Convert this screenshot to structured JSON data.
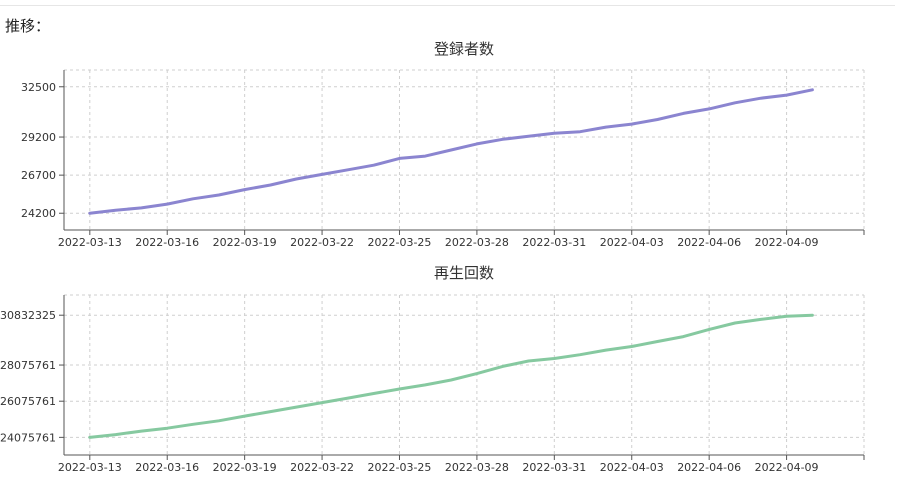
{
  "page": {
    "section_label": "推移："
  },
  "chart_data": [
    {
      "type": "line",
      "title": "登録者数",
      "xlabel": "",
      "ylabel": "",
      "color": "#8b85d0",
      "grid": true,
      "x_ticks": [
        "2022-03-13",
        "2022-03-16",
        "2022-03-19",
        "2022-03-22",
        "2022-03-25",
        "2022-03-28",
        "2022-03-31",
        "2022-04-03",
        "2022-04-06",
        "2022-04-09"
      ],
      "y_ticks": [
        24200,
        26700,
        29200,
        32500
      ],
      "ylim": [
        23100,
        33600
      ],
      "xlim": [
        "2022-03-12",
        "2022-04-12"
      ],
      "series": [
        {
          "x": [
            "2022-03-13",
            "2022-03-14",
            "2022-03-15",
            "2022-03-16",
            "2022-03-17",
            "2022-03-18",
            "2022-03-19",
            "2022-03-20",
            "2022-03-21",
            "2022-03-22",
            "2022-03-23",
            "2022-03-24",
            "2022-03-25",
            "2022-03-26",
            "2022-03-27",
            "2022-03-28",
            "2022-03-29",
            "2022-03-30",
            "2022-03-31",
            "2022-04-01",
            "2022-04-02",
            "2022-04-03",
            "2022-04-04",
            "2022-04-05",
            "2022-04-06",
            "2022-04-07",
            "2022-04-08",
            "2022-04-09",
            "2022-04-10"
          ],
          "values": [
            24200,
            24400,
            24550,
            24800,
            25150,
            25400,
            25750,
            26050,
            26450,
            26750,
            27050,
            27350,
            27800,
            27950,
            28350,
            28750,
            29050,
            29250,
            29450,
            29550,
            29850,
            30050,
            30350,
            30750,
            31050,
            31450,
            31750,
            31950,
            32300
          ]
        }
      ]
    },
    {
      "type": "line",
      "title": "再生回数",
      "xlabel": "",
      "ylabel": "",
      "color": "#86c9a0",
      "grid": true,
      "x_ticks": [
        "2022-03-13",
        "2022-03-16",
        "2022-03-19",
        "2022-03-22",
        "2022-03-25",
        "2022-03-28",
        "2022-03-31",
        "2022-04-03",
        "2022-04-06",
        "2022-04-09"
      ],
      "y_ticks": [
        24075761,
        26075761,
        28075761,
        30832325
      ],
      "ylim": [
        23100000,
        31950000
      ],
      "xlim": [
        "2022-03-12",
        "2022-04-12"
      ],
      "series": [
        {
          "x": [
            "2022-03-13",
            "2022-03-14",
            "2022-03-15",
            "2022-03-16",
            "2022-03-17",
            "2022-03-18",
            "2022-03-19",
            "2022-03-20",
            "2022-03-21",
            "2022-03-22",
            "2022-03-23",
            "2022-03-24",
            "2022-03-25",
            "2022-03-26",
            "2022-03-27",
            "2022-03-28",
            "2022-03-29",
            "2022-03-30",
            "2022-03-31",
            "2022-04-01",
            "2022-04-02",
            "2022-04-03",
            "2022-04-04",
            "2022-04-05",
            "2022-04-06",
            "2022-04-07",
            "2022-04-08",
            "2022-04-09",
            "2022-04-10"
          ],
          "values": [
            24075761,
            24230000,
            24420000,
            24580000,
            24800000,
            24990000,
            25250000,
            25500000,
            25750000,
            26000000,
            26250000,
            26500000,
            26750000,
            26980000,
            27250000,
            27600000,
            28000000,
            28300000,
            28440000,
            28650000,
            28900000,
            29100000,
            29380000,
            29650000,
            30050000,
            30400000,
            30600000,
            30780000,
            30832325
          ]
        }
      ]
    }
  ]
}
